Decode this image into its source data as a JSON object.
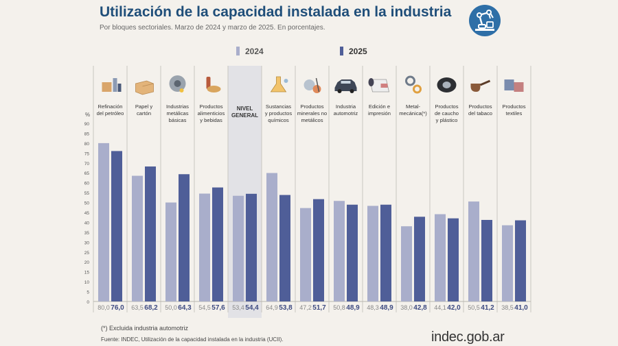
{
  "header": {
    "title": "Utilización de la capacidad instalada en la industria",
    "subtitle": "Por bloques sectoriales. Marzo de 2024 y marzo de 2025. En porcentajes."
  },
  "legend": {
    "label_2024": "2024",
    "label_2025": "2025"
  },
  "colors": {
    "series_2024": "#a9aecb",
    "series_2025": "#4f5e98",
    "highlight_column": "#e2e2e6",
    "title": "#1f4e79",
    "badge": "#2e6fa7"
  },
  "chart_data": {
    "type": "bar",
    "title": "Utilización de la capacidad instalada en la industria",
    "ylabel": "%",
    "ylim": [
      0,
      90
    ],
    "yticks": [
      0,
      5,
      10,
      15,
      20,
      25,
      30,
      35,
      40,
      45,
      50,
      55,
      60,
      65,
      70,
      75,
      80,
      85,
      90
    ],
    "grid": false,
    "categories": [
      [
        "Refinación",
        "del petróleo"
      ],
      [
        "Papel y",
        "cartón"
      ],
      [
        "Industrias",
        "metálicas",
        "básicas"
      ],
      [
        "Productos",
        "alimenticios",
        "y bebidas"
      ],
      [
        "NIVEL",
        "GENERAL"
      ],
      [
        "Sustancias",
        "y productos",
        "químicos"
      ],
      [
        "Productos",
        "minerales no",
        "metálicos"
      ],
      [
        "Industria",
        "automotriz"
      ],
      [
        "Edición e",
        "impresión"
      ],
      [
        "Metal-",
        "mecánica(*)"
      ],
      [
        "Productos",
        "de caucho",
        "y plástico"
      ],
      [
        "Productos",
        "del tabaco"
      ],
      [
        "Productos",
        "textiles"
      ]
    ],
    "category_icons": [
      "oil-refinery-icon",
      "paper-box-icon",
      "metal-saw-icon",
      "food-drink-icon",
      "none",
      "chemistry-flask-icon",
      "mineral-cart-icon",
      "car-icon",
      "paper-roll-icon",
      "gears-icon",
      "tire-icon",
      "pipe-icon",
      "textile-icon"
    ],
    "highlight_category_index": 4,
    "series": [
      {
        "name": "2024",
        "values": [
          80.0,
          63.5,
          50.0,
          54.5,
          53.4,
          64.9,
          47.2,
          50.8,
          48.3,
          38.0,
          44.1,
          50.5,
          38.5
        ],
        "labels": [
          "80,0",
          "63,5",
          "50,0",
          "54,5",
          "53,4",
          "64,9",
          "47,2",
          "50,8",
          "48,3",
          "38,0",
          "44,1",
          "50,5",
          "38,5"
        ]
      },
      {
        "name": "2025",
        "values": [
          76.0,
          68.2,
          64.3,
          57.6,
          54.4,
          53.8,
          51.7,
          48.9,
          48.9,
          42.8,
          42.0,
          41.2,
          41.0
        ],
        "labels": [
          "76,0",
          "68,2",
          "64,3",
          "57,6",
          "54,4",
          "53,8",
          "51,7",
          "48,9",
          "48,9",
          "42,8",
          "42,0",
          "41,2",
          "41,0"
        ]
      }
    ]
  },
  "footer": {
    "footnote": "(*) Excluida industria automotriz",
    "source": "Fuente: INDEC, Utilización de la capacidad instalada en la industria (UCII).",
    "brand": "indec.gob.ar"
  }
}
